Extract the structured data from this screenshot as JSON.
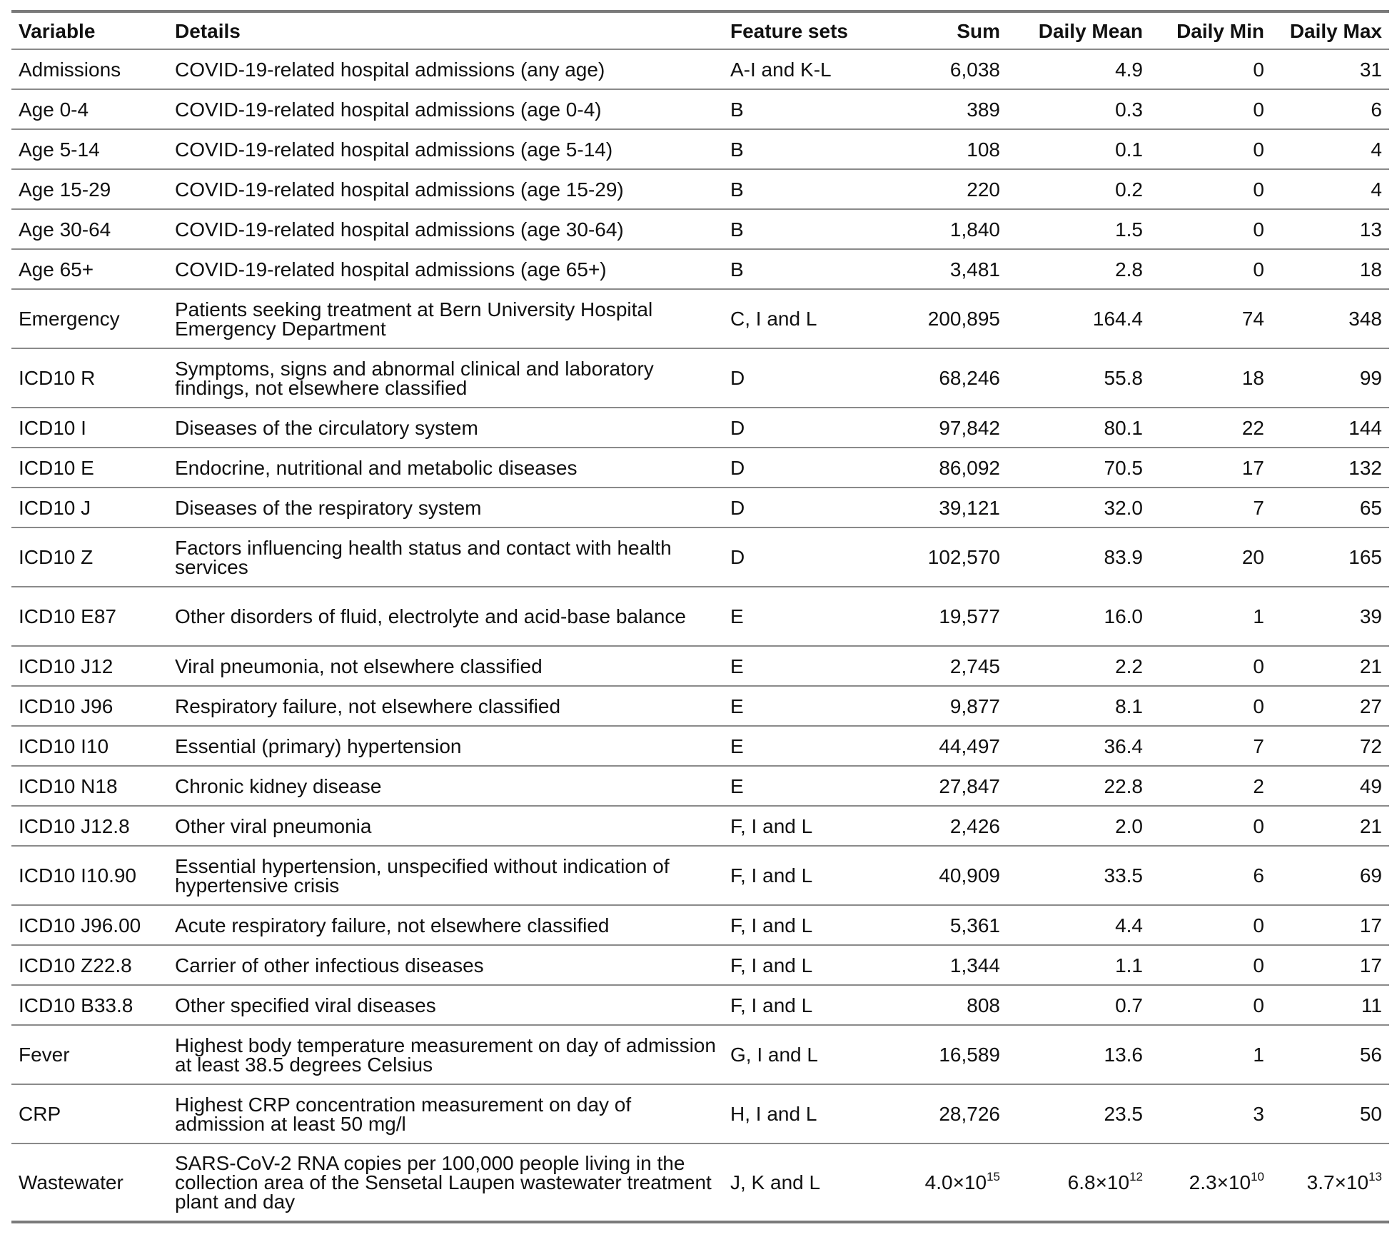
{
  "table": {
    "headers": {
      "variable": "Variable",
      "details": "Details",
      "feature_sets": "Feature sets",
      "sum": "Sum",
      "daily_mean": "Daily Mean",
      "daily_min": "Daily Min",
      "daily_max": "Daily Max"
    },
    "rows": [
      {
        "variable": "Admissions",
        "details": "COVID-19-related hospital admissions (any age)",
        "feature_sets": "A-I and K-L",
        "sum": "6,038",
        "daily_mean": "4.9",
        "daily_min": "0",
        "daily_max": "31"
      },
      {
        "variable": "Age 0-4",
        "details": "COVID-19-related hospital admissions (age 0-4)",
        "feature_sets": "B",
        "sum": "389",
        "daily_mean": "0.3",
        "daily_min": "0",
        "daily_max": "6"
      },
      {
        "variable": "Age 5-14",
        "details": "COVID-19-related hospital admissions (age 5-14)",
        "feature_sets": "B",
        "sum": "108",
        "daily_mean": "0.1",
        "daily_min": "0",
        "daily_max": "4"
      },
      {
        "variable": "Age 15-29",
        "details": "COVID-19-related hospital admissions (age 15-29)",
        "feature_sets": "B",
        "sum": "220",
        "daily_mean": "0.2",
        "daily_min": "0",
        "daily_max": "4"
      },
      {
        "variable": "Age 30-64",
        "details": "COVID-19-related hospital admissions (age 30-64)",
        "feature_sets": "B",
        "sum": "1,840",
        "daily_mean": "1.5",
        "daily_min": "0",
        "daily_max": "13"
      },
      {
        "variable": "Age 65+",
        "details": "COVID-19-related hospital admissions (age 65+)",
        "feature_sets": "B",
        "sum": "3,481",
        "daily_mean": "2.8",
        "daily_min": "0",
        "daily_max": "18"
      },
      {
        "variable": "Emergency",
        "details": "Patients seeking treatment at Bern University Hospital Emergency Department",
        "feature_sets": "C, I and L",
        "sum": "200,895",
        "daily_mean": "164.4",
        "daily_min": "74",
        "daily_max": "348"
      },
      {
        "variable": "ICD10 R",
        "details": "Symptoms, signs and abnormal clinical and laboratory findings, not elsewhere classified",
        "feature_sets": "D",
        "sum": "68,246",
        "daily_mean": "55.8",
        "daily_min": "18",
        "daily_max": "99"
      },
      {
        "variable": "ICD10 I",
        "details": "Diseases of the circulatory system",
        "feature_sets": "D",
        "sum": "97,842",
        "daily_mean": "80.1",
        "daily_min": "22",
        "daily_max": "144"
      },
      {
        "variable": "ICD10 E",
        "details": "Endocrine, nutritional and metabolic diseases",
        "feature_sets": "D",
        "sum": "86,092",
        "daily_mean": "70.5",
        "daily_min": "17",
        "daily_max": "132"
      },
      {
        "variable": "ICD10 J",
        "details": "Diseases of the respiratory system",
        "feature_sets": "D",
        "sum": "39,121",
        "daily_mean": "32.0",
        "daily_min": "7",
        "daily_max": "65"
      },
      {
        "variable": "ICD10 Z",
        "details": "Factors influencing health status and contact with health services",
        "feature_sets": "D",
        "sum": "102,570",
        "daily_mean": "83.9",
        "daily_min": "20",
        "daily_max": "165"
      },
      {
        "variable": "ICD10 E87",
        "details": "Other disorders of fluid, electrolyte and acid-base balance",
        "feature_sets": "E",
        "sum": "19,577",
        "daily_mean": "16.0",
        "daily_min": "1",
        "daily_max": "39"
      },
      {
        "variable": "ICD10 J12",
        "details": "Viral pneumonia, not elsewhere classified",
        "feature_sets": "E",
        "sum": "2,745",
        "daily_mean": "2.2",
        "daily_min": "0",
        "daily_max": "21"
      },
      {
        "variable": "ICD10 J96",
        "details": "Respiratory failure, not elsewhere classified",
        "feature_sets": "E",
        "sum": "9,877",
        "daily_mean": "8.1",
        "daily_min": "0",
        "daily_max": "27"
      },
      {
        "variable": "ICD10 I10",
        "details": "Essential (primary) hypertension",
        "feature_sets": "E",
        "sum": "44,497",
        "daily_mean": "36.4",
        "daily_min": "7",
        "daily_max": "72"
      },
      {
        "variable": "ICD10 N18",
        "details": "Chronic kidney disease",
        "feature_sets": "E",
        "sum": "27,847",
        "daily_mean": "22.8",
        "daily_min": "2",
        "daily_max": "49"
      },
      {
        "variable": "ICD10 J12.8",
        "details": "Other viral pneumonia",
        "feature_sets": "F, I and L",
        "sum": "2,426",
        "daily_mean": "2.0",
        "daily_min": "0",
        "daily_max": "21"
      },
      {
        "variable": "ICD10 I10.90",
        "details": "Essential hypertension, unspecified without indication of hypertensive crisis",
        "feature_sets": "F, I and L",
        "sum": "40,909",
        "daily_mean": "33.5",
        "daily_min": "6",
        "daily_max": "69"
      },
      {
        "variable": "ICD10 J96.00",
        "details": "Acute respiratory failure, not elsewhere classified",
        "feature_sets": "F, I and L",
        "sum": "5,361",
        "daily_mean": "4.4",
        "daily_min": "0",
        "daily_max": "17"
      },
      {
        "variable": "ICD10 Z22.8",
        "details": "Carrier of other infectious diseases",
        "feature_sets": "F, I and L",
        "sum": "1,344",
        "daily_mean": "1.1",
        "daily_min": "0",
        "daily_max": "17"
      },
      {
        "variable": "ICD10 B33.8",
        "details": "Other specified viral diseases",
        "feature_sets": "F, I and L",
        "sum": "808",
        "daily_mean": "0.7",
        "daily_min": "0",
        "daily_max": "11"
      },
      {
        "variable": "Fever",
        "details": "Highest body temperature measurement on day of admission at least 38.5 degrees Celsius",
        "feature_sets": "G, I and L",
        "sum": "16,589",
        "daily_mean": "13.6",
        "daily_min": "1",
        "daily_max": "56"
      },
      {
        "variable": "CRP",
        "details": "Highest CRP concentration measurement on day of admission at least 50 mg/l",
        "feature_sets": "H, I and L",
        "sum": "28,726",
        "daily_mean": "23.5",
        "daily_min": "3",
        "daily_max": "50"
      }
    ],
    "wastewater": {
      "variable": "Wastewater",
      "details": "SARS-CoV-2 RNA copies per 100,000 people living in the collection area of the Sensetal Laupen wastewater treatment plant and day",
      "feature_sets": "J, K and L",
      "sum_base": "4.0×10",
      "sum_exp": "15",
      "mean_base": "6.8×10",
      "mean_exp": "12",
      "min_base": "2.3×10",
      "min_exp": "10",
      "max_base": "3.7×10",
      "max_exp": "13"
    }
  }
}
